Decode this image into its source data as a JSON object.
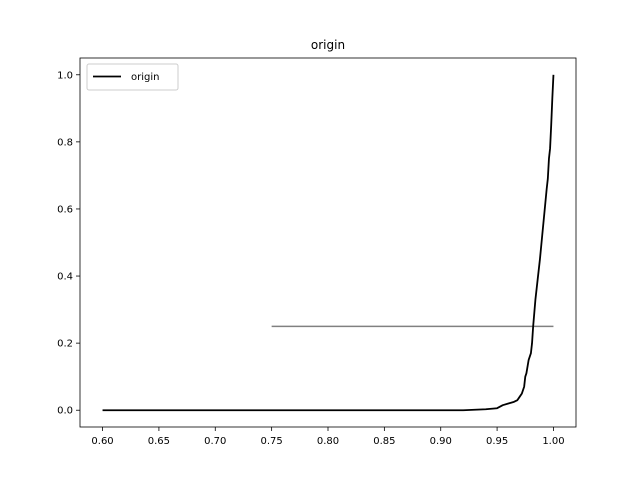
{
  "chart_data": {
    "type": "line",
    "title": "origin",
    "xlabel": "",
    "ylabel": "",
    "xlim": [
      0.58,
      1.02
    ],
    "ylim": [
      -0.05,
      1.05
    ],
    "xticks": [
      "0.60",
      "0.65",
      "0.70",
      "0.75",
      "0.80",
      "0.85",
      "0.90",
      "0.95",
      "1.00"
    ],
    "yticks": [
      "0.0",
      "0.2",
      "0.4",
      "0.6",
      "0.8",
      "1.0"
    ],
    "grid": false,
    "legend": {
      "placement": "top-left",
      "entries": [
        "origin"
      ]
    },
    "series": [
      {
        "name": "origin",
        "color": "#000000",
        "x": [
          0.6,
          0.7,
          0.8,
          0.9,
          0.92,
          0.94,
          0.95,
          0.955,
          0.96,
          0.965,
          0.968,
          0.97,
          0.972,
          0.974,
          0.975,
          0.976,
          0.978,
          0.98,
          0.981,
          0.982,
          0.983,
          0.984,
          0.986,
          0.988,
          0.99,
          0.992,
          0.994,
          0.995,
          0.996,
          0.997,
          0.998,
          0.999,
          1.0
        ],
        "y": [
          0.0,
          0.0,
          0.0,
          0.0,
          0.0,
          0.003,
          0.006,
          0.015,
          0.02,
          0.025,
          0.03,
          0.04,
          0.05,
          0.07,
          0.1,
          0.11,
          0.15,
          0.17,
          0.2,
          0.25,
          0.29,
          0.33,
          0.39,
          0.45,
          0.52,
          0.59,
          0.66,
          0.69,
          0.75,
          0.78,
          0.85,
          0.93,
          1.0
        ]
      }
    ],
    "hline": {
      "y": 0.25,
      "xmin": 0.75,
      "xmax": 1.0,
      "color": "#808080"
    }
  }
}
